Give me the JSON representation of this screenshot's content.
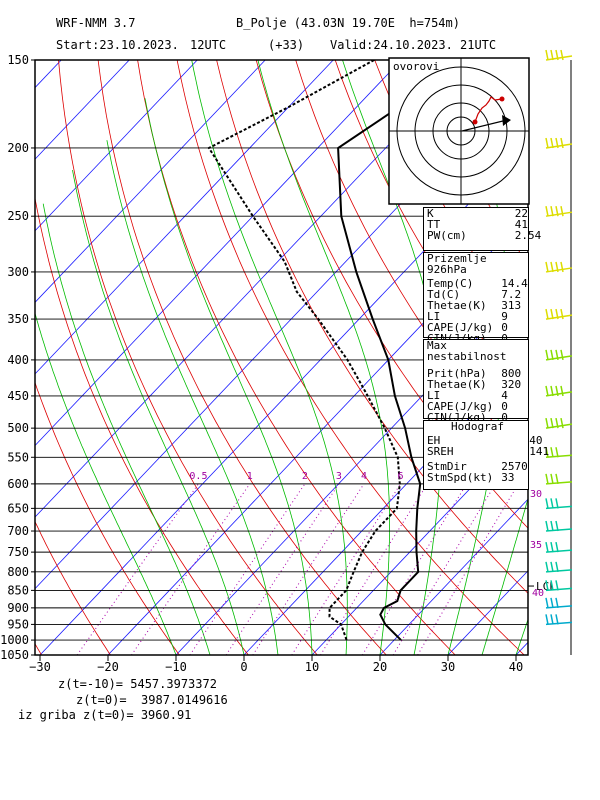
{
  "header": {
    "model": "WRF-NMM 3.7",
    "station": "B_Polje (43.03N 19.70E  h=754m)",
    "start": "Start:23.10.2023.",
    "start_hour": "12UTC",
    "lead": "(+33)",
    "valid": "Valid:24.10.2023.",
    "valid_hour": "21UTC"
  },
  "hodograph": {
    "title": "ovorovi"
  },
  "indices": [
    {
      "label": "K",
      "value": "22"
    },
    {
      "label": "TT",
      "value": "41"
    },
    {
      "label": "PW(cm)",
      "value": "2.54"
    }
  ],
  "surface_box": {
    "title": "Prizemlje 926hPa",
    "rows": [
      {
        "label": "Temp(C)",
        "value": "14.4"
      },
      {
        "label": "Td(C)",
        "value": "7.2"
      },
      {
        "label": "Thetae(K)",
        "value": "313"
      },
      {
        "label": "LI",
        "value": "9"
      },
      {
        "label": "CAPE(J/kg)",
        "value": "0"
      },
      {
        "label": "CIN(J/kg)",
        "value": "0"
      }
    ]
  },
  "unstable_box": {
    "title": "Max nestabilnost",
    "rows": [
      {
        "label": "Prit(hPa)",
        "value": "800"
      },
      {
        "label": "Thetae(K)",
        "value": "320"
      },
      {
        "label": "LI",
        "value": "4"
      },
      {
        "label": "CAPE(J/kg)",
        "value": "0"
      },
      {
        "label": "CIN(J/kg)",
        "value": "0"
      }
    ]
  },
  "hodograf_box": {
    "title": "Hodograf",
    "rows": [
      {
        "label": "EH",
        "value": "40"
      },
      {
        "label": "SREH",
        "value": "141"
      },
      {
        "label": "StmDir",
        "value": "2570"
      },
      {
        "label": "StmSpd(kt)",
        "value": "33"
      }
    ]
  },
  "bottom": {
    "line1": "z(t=-10)= 5457.3973372",
    "line2": "z(t=0)=  3987.0149616",
    "line3": "iz griba z(t=0)= 3960.91"
  },
  "chart_data": {
    "type": "skew-t",
    "xlabel": "",
    "ylabel": "",
    "temperature_ticks": [
      -30,
      -20,
      -10,
      0,
      10,
      20,
      30,
      40
    ],
    "pressure_ticks": [
      150,
      200,
      250,
      300,
      350,
      400,
      450,
      500,
      550,
      600,
      650,
      700,
      750,
      800,
      850,
      900,
      950,
      1000,
      1050
    ],
    "mixing_ratio_labels": [
      "0.5",
      "1",
      "2",
      "3",
      "4",
      "6",
      "8"
    ],
    "wind_speed_labels": [
      "30",
      "35",
      "40"
    ],
    "lcl_label": "LCL",
    "temperature_profile": [
      {
        "p": 150,
        "t": -50
      },
      {
        "p": 200,
        "t": -57
      },
      {
        "p": 250,
        "t": -47
      },
      {
        "p": 300,
        "t": -37
      },
      {
        "p": 350,
        "t": -28
      },
      {
        "p": 400,
        "t": -20
      },
      {
        "p": 450,
        "t": -14
      },
      {
        "p": 500,
        "t": -8
      },
      {
        "p": 550,
        "t": -3
      },
      {
        "p": 600,
        "t": 2
      },
      {
        "p": 650,
        "t": 5
      },
      {
        "p": 700,
        "t": 8
      },
      {
        "p": 750,
        "t": 11
      },
      {
        "p": 800,
        "t": 14
      },
      {
        "p": 850,
        "t": 14
      },
      {
        "p": 880,
        "t": 15
      },
      {
        "p": 900,
        "t": 14
      },
      {
        "p": 920,
        "t": 14.4
      },
      {
        "p": 950,
        "t": 16.5
      },
      {
        "p": 1000,
        "t": 21
      }
    ],
    "dewpoint_profile": [
      {
        "p": 150,
        "t": -64
      },
      {
        "p": 175,
        "t": -70
      },
      {
        "p": 200,
        "t": -76
      },
      {
        "p": 250,
        "t": -60
      },
      {
        "p": 290,
        "t": -49
      },
      {
        "p": 320,
        "t": -43
      },
      {
        "p": 350,
        "t": -36
      },
      {
        "p": 400,
        "t": -26
      },
      {
        "p": 450,
        "t": -18
      },
      {
        "p": 500,
        "t": -11
      },
      {
        "p": 550,
        "t": -5
      },
      {
        "p": 600,
        "t": -1
      },
      {
        "p": 650,
        "t": 2
      },
      {
        "p": 700,
        "t": 2
      },
      {
        "p": 750,
        "t": 3
      },
      {
        "p": 800,
        "t": 4.5
      },
      {
        "p": 850,
        "t": 6
      },
      {
        "p": 900,
        "t": 6
      },
      {
        "p": 926,
        "t": 7.2
      },
      {
        "p": 950,
        "t": 10
      },
      {
        "p": 1000,
        "t": 13
      }
    ],
    "wind_levels": [
      150,
      200,
      250,
      300,
      350,
      400,
      450,
      500,
      550,
      600,
      650,
      700,
      750,
      800,
      850,
      900,
      950
    ],
    "colors": {
      "isotherm": "#1a1aff",
      "dry_adiabat": "#dd0000",
      "moist_adiabat": "#00bb00",
      "mixing_ratio": "#aa00aa",
      "profile": "#000000"
    }
  }
}
